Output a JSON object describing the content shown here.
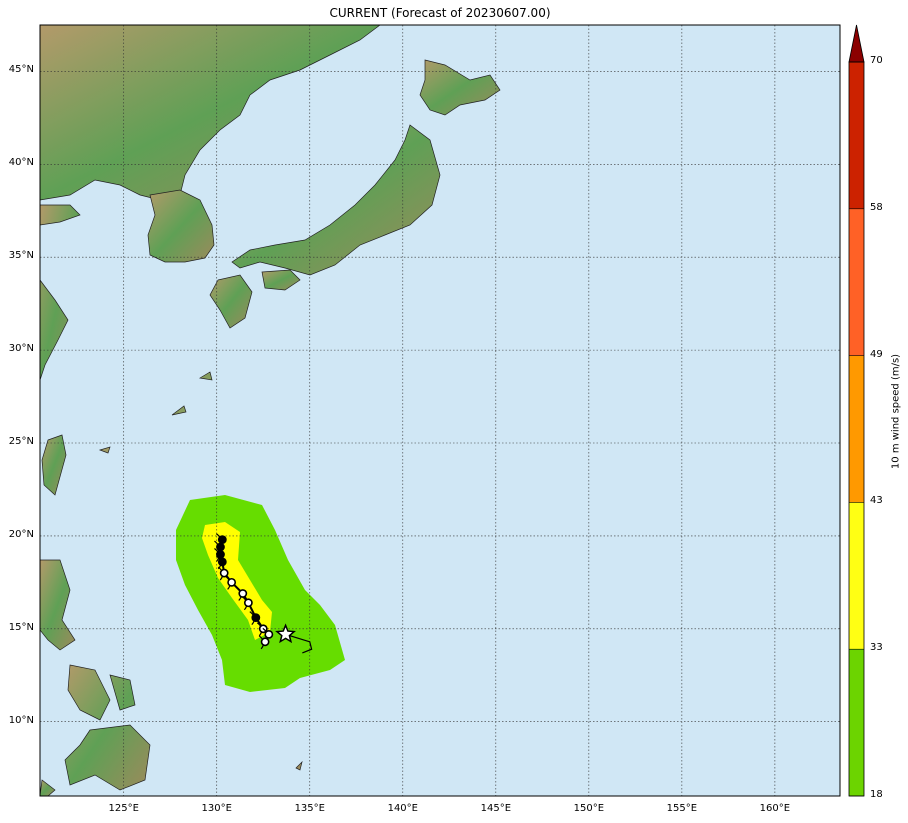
{
  "title": "CURRENT (Forecast of 20230607.00)",
  "map": {
    "lat_labels": [
      {
        "text": "45°N",
        "lat": 45
      },
      {
        "text": "40°N",
        "lat": 40
      },
      {
        "text": "35°N",
        "lat": 35
      },
      {
        "text": "30°N",
        "lat": 30
      },
      {
        "text": "25°N",
        "lat": 25
      },
      {
        "text": "20°N",
        "lat": 20
      },
      {
        "text": "15°N",
        "lat": 15
      },
      {
        "text": "10°N",
        "lat": 10
      }
    ],
    "lon_labels": [
      {
        "text": "125°E",
        "lon": 125
      },
      {
        "text": "130°E",
        "lon": 130
      },
      {
        "text": "135°E",
        "lon": 135
      },
      {
        "text": "140°E",
        "lon": 140
      },
      {
        "text": "145°E",
        "lon": 145
      },
      {
        "text": "150°E",
        "lon": 150
      },
      {
        "text": "155°E",
        "lon": 155
      },
      {
        "text": "160°E",
        "lon": 160
      }
    ],
    "extent": {
      "lon_min": 120.5,
      "lon_max": 163.5,
      "lat_min": 6,
      "lat_max": 47.5
    },
    "colors": {
      "ocean": "#d0e7f5",
      "grid": "#333333",
      "wind_18_33": "#66dd00",
      "wind_33_43": "#ffff00"
    }
  },
  "storm_track": {
    "points": [
      {
        "lon": 130.3,
        "lat": 19.8
      },
      {
        "lon": 130.2,
        "lat": 19.4
      },
      {
        "lon": 130.2,
        "lat": 19.0
      },
      {
        "lon": 130.3,
        "lat": 18.6
      },
      {
        "lon": 130.4,
        "lat": 18.0
      },
      {
        "lon": 130.8,
        "lat": 17.5
      },
      {
        "lon": 131.4,
        "lat": 16.9
      },
      {
        "lon": 131.7,
        "lat": 16.4
      },
      {
        "lon": 132.1,
        "lat": 15.6
      },
      {
        "lon": 132.5,
        "lat": 15.0
      },
      {
        "lon": 132.8,
        "lat": 14.7
      },
      {
        "lon": 132.6,
        "lat": 14.3
      }
    ],
    "current_position": {
      "lon": 133.7,
      "lat": 14.7
    },
    "tail": [
      {
        "lon": 133.7,
        "lat": 14.7
      },
      {
        "lon": 135.0,
        "lat": 14.3
      },
      {
        "lon": 135.1,
        "lat": 13.9
      },
      {
        "lon": 134.6,
        "lat": 13.7
      }
    ]
  },
  "colorbar": {
    "label": "10 m wind speed (m/s)",
    "ticks": [
      "70",
      "58",
      "49",
      "43",
      "33",
      "18"
    ],
    "segments": [
      {
        "from": 18,
        "to": 33,
        "color": "#6cd400"
      },
      {
        "from": 33,
        "to": 43,
        "color": "#ffff14"
      },
      {
        "from": 43,
        "to": 49,
        "color": "#ff9900"
      },
      {
        "from": 49,
        "to": 58,
        "color": "#ff6126"
      },
      {
        "from": 58,
        "to": 70,
        "color": "#cc2200"
      }
    ],
    "extend_color": "#8b0000"
  }
}
